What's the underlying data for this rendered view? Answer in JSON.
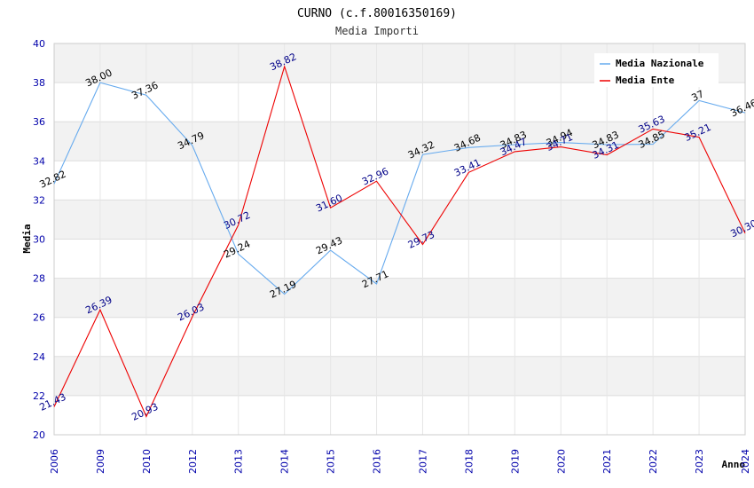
{
  "chart_data": {
    "type": "line",
    "title": "CURNO (c.f.80016350169)",
    "subtitle": "Media Importi",
    "xlabel": "Anno",
    "ylabel": "Media",
    "ylim": [
      20,
      40
    ],
    "yticks": [
      "20",
      "22",
      "24",
      "26",
      "28",
      "30",
      "32",
      "34",
      "36",
      "38",
      "40"
    ],
    "categories": [
      "2006",
      "2009",
      "2010",
      "2012",
      "2013",
      "2014",
      "2015",
      "2016",
      "2017",
      "2018",
      "2019",
      "2020",
      "2021",
      "2022",
      "2023",
      "2024"
    ],
    "grid": true,
    "legend": "top-right",
    "series": [
      {
        "name": "Media Nazionale",
        "color": "#66aaee",
        "label_color": "#000000",
        "values": [
          32.82,
          38.0,
          37.36,
          34.79,
          29.24,
          27.19,
          29.43,
          27.71,
          34.32,
          34.68,
          34.83,
          34.94,
          34.83,
          34.85,
          37.08,
          36.46
        ],
        "labels": [
          "32.82",
          "38.00",
          "37.36",
          "34.79",
          "29.24",
          "27.19",
          "29.43",
          "27.71",
          "34.32",
          "34.68",
          "34.83",
          "34.94",
          "34.83",
          "34.85",
          "37",
          "36.46"
        ]
      },
      {
        "name": "Media Ente",
        "color": "#ee0000",
        "label_color": "#000088",
        "values": [
          21.43,
          26.39,
          20.93,
          26.03,
          30.72,
          38.82,
          31.6,
          32.96,
          29.73,
          33.41,
          34.47,
          34.71,
          34.31,
          35.63,
          35.21,
          30.3
        ],
        "labels": [
          "21.43",
          "26.39",
          "20.93",
          "26.03",
          "30.72",
          "38.82",
          "31.60",
          "32.96",
          "29.73",
          "33.41",
          "34.47",
          "34.71",
          "34.31",
          "35.63",
          "35.21",
          "30.30"
        ]
      }
    ]
  }
}
